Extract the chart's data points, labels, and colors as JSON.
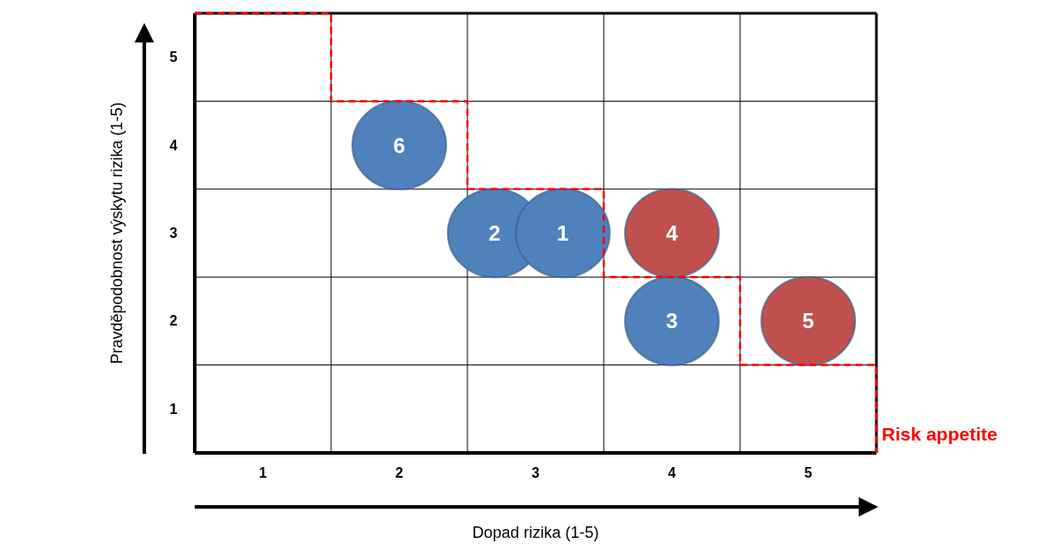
{
  "chart_data": {
    "type": "scatter",
    "xlabel": "Dopad rizika (1-5)",
    "ylabel": "Pravděpodobnost výskytu rizika (1-5)",
    "xlim": [
      0.5,
      5.5
    ],
    "ylim": [
      0.5,
      5.5
    ],
    "xticks": [
      {
        "value": 0.5,
        "label": null
      },
      1,
      {
        "value": 1.5,
        "label": null
      },
      2,
      {
        "value": 2.5,
        "label": null
      },
      3,
      {
        "value": 3.5,
        "label": null
      },
      4,
      {
        "value": 4.5,
        "label": null
      },
      5,
      {
        "value": 5.5,
        "label": null
      }
    ],
    "yticks": [
      {
        "value": 0.5,
        "label": null
      },
      1,
      {
        "value": 1.5,
        "label": null
      },
      2,
      {
        "value": 2.5,
        "label": null
      },
      3,
      {
        "value": 3.5,
        "label": null
      },
      4,
      {
        "value": 4.5,
        "label": null
      },
      5,
      {
        "value": 5.5,
        "label": null
      }
    ],
    "grid": true,
    "series": [
      {
        "name": "6",
        "color": "#4f81bd",
        "marker": "circle",
        "x": [
          2
        ],
        "values": [
          4
        ]
      },
      {
        "name": "2",
        "color": "#4f81bd",
        "marker": "circle",
        "x": [
          2.7
        ],
        "values": [
          3
        ]
      },
      {
        "name": "1",
        "color": "#4f81bd",
        "marker": "circle",
        "x": [
          3.2
        ],
        "values": [
          3
        ]
      },
      {
        "name": "4",
        "color": "#c0504d",
        "marker": "circle",
        "x": [
          4
        ],
        "values": [
          3
        ]
      },
      {
        "name": "3",
        "color": "#4f81bd",
        "marker": "circle",
        "x": [
          4
        ],
        "values": [
          2
        ]
      },
      {
        "name": "5",
        "color": "#c0504d",
        "marker": "circle",
        "x": [
          5
        ],
        "values": [
          2
        ]
      },
      {
        "name": "Risk appetite",
        "type": "line",
        "color": "#ff0000",
        "line_style": "dashed",
        "marker": "none",
        "x": [
          0.5,
          1.5,
          1.5,
          2.5,
          2.5,
          3.5,
          3.5,
          4.5,
          4.5,
          5.5,
          5.5
        ],
        "values": [
          5.5,
          5.5,
          4.5,
          4.5,
          3.5,
          3.5,
          2.5,
          2.5,
          1.5,
          1.5,
          0.5
        ]
      }
    ]
  }
}
